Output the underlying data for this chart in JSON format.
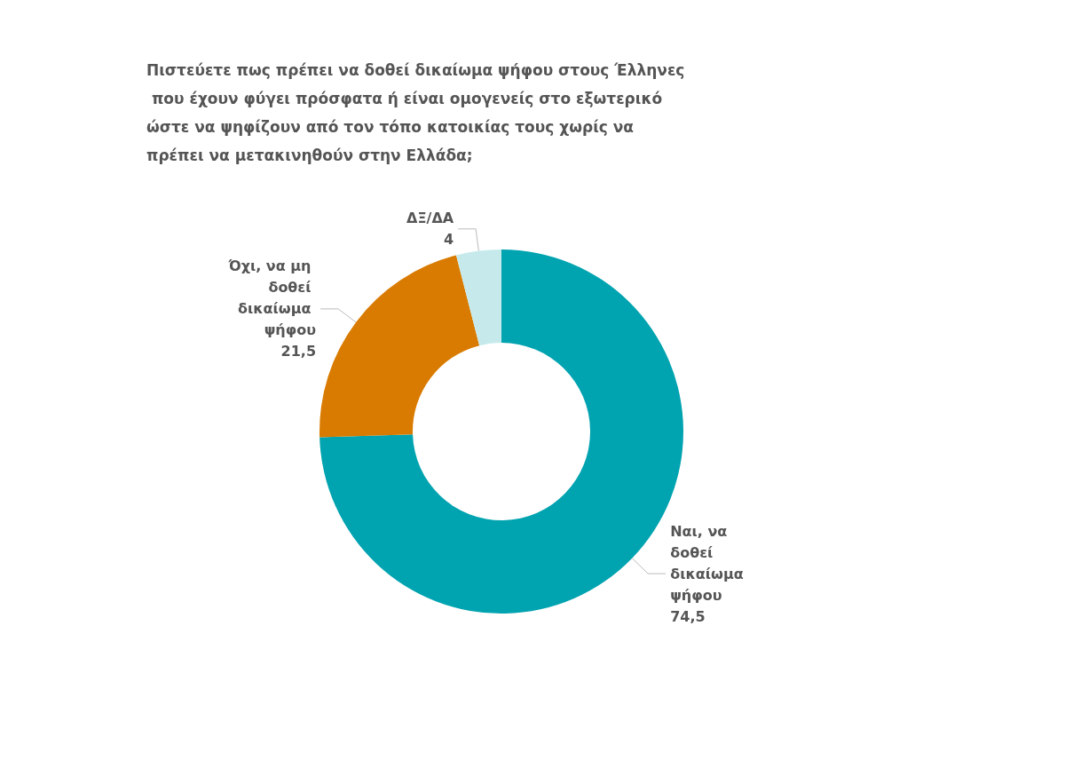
{
  "chart_data": {
    "type": "donut",
    "title": "Πιστεύετε πως πρέπει να δοθεί δικαίωμα ψήφου στους Έλληνες που έχουν φύγει πρόσφατα ή είναι ομογενείς στο εξωτερικό ώστε να ψηφίζουν από τον τόπο κατοικίας τους χωρίς να πρέπει να μετακινηθούν στην Ελλάδα;",
    "categories": [
      "Ναι, να δοθεί δικαίωμα ψήφου",
      "Όχι, να μη δοθεί δικαίωμα ψήφου",
      "ΔΞ/ΔΑ"
    ],
    "values": [
      74.5,
      21.5,
      4
    ],
    "value_labels": [
      "74,5",
      "21,5",
      "4"
    ],
    "colors": [
      "#00a3b0",
      "#d97b00",
      "#c6eaec"
    ]
  }
}
